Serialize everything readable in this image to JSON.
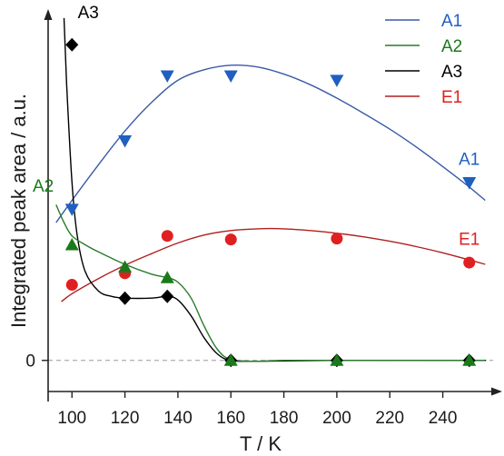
{
  "chart_data": {
    "type": "scatter",
    "xlabel": "T / K",
    "ylabel": "Integrated peak area / a.u.",
    "xlim": [
      91,
      259
    ],
    "ylim": [
      -0.35,
      3.9
    ],
    "x_ticks": [
      100,
      120,
      140,
      160,
      180,
      200,
      220,
      240
    ],
    "y_ticks": [
      {
        "value": 0,
        "label": "0"
      }
    ],
    "zero_line": "dashed",
    "grid": false,
    "legend": {
      "position": "top-right"
    },
    "series": [
      {
        "name": "A1",
        "color": "#1f5fc0",
        "line_color": "#3a5aa8",
        "marker": "triangle-down",
        "x": [
          100,
          120,
          136,
          160,
          200,
          250
        ],
        "y": [
          1.7,
          2.47,
          3.2,
          3.2,
          3.15,
          2.0
        ],
        "fit_x": [
          94,
          100,
          110,
          120,
          130,
          140,
          150,
          160,
          170,
          180,
          190,
          200,
          210,
          220,
          230,
          240,
          250,
          256
        ],
        "fit_y": [
          1.55,
          1.8,
          2.2,
          2.58,
          2.9,
          3.15,
          3.27,
          3.32,
          3.3,
          3.22,
          3.1,
          2.95,
          2.78,
          2.6,
          2.4,
          2.18,
          1.95,
          1.8
        ]
      },
      {
        "name": "A2",
        "color": "#1a7a1a",
        "line_color": "#2a7a2a",
        "marker": "triangle-up",
        "x": [
          100,
          120,
          136,
          160,
          200,
          250
        ],
        "y": [
          1.3,
          1.05,
          0.93,
          0.0,
          0.0,
          0.0
        ],
        "fit_x": [
          94,
          97,
          100,
          105,
          110,
          120,
          130,
          136,
          140,
          145,
          150,
          155,
          160,
          170,
          180,
          200,
          220,
          250,
          256
        ],
        "fit_y": [
          1.75,
          1.55,
          1.4,
          1.3,
          1.22,
          1.08,
          0.97,
          0.93,
          0.88,
          0.7,
          0.38,
          0.12,
          0.01,
          -0.01,
          0.0,
          0.0,
          0.0,
          0.0,
          0.0
        ]
      },
      {
        "name": "A3",
        "color": "#000000",
        "line_color": "#000000",
        "marker": "diamond",
        "x": [
          100,
          120,
          136,
          160,
          200,
          250
        ],
        "y": [
          3.55,
          0.7,
          0.72,
          0.0,
          0.0,
          0.0
        ],
        "fit_x": [
          97,
          98,
          100,
          102,
          105,
          110,
          115,
          120,
          130,
          136,
          140,
          145,
          150,
          155,
          160,
          170,
          200,
          250,
          256
        ],
        "fit_y": [
          3.85,
          3.1,
          2.0,
          1.4,
          1.0,
          0.78,
          0.72,
          0.7,
          0.7,
          0.72,
          0.68,
          0.5,
          0.25,
          0.07,
          0.0,
          -0.01,
          0.0,
          0.0,
          0.0
        ]
      },
      {
        "name": "E1",
        "color": "#e02020",
        "line_color": "#b02020",
        "marker": "circle",
        "x": [
          100,
          120,
          136,
          160,
          200,
          250
        ],
        "y": [
          0.85,
          0.98,
          1.4,
          1.36,
          1.37,
          1.1
        ],
        "fit_x": [
          96,
          100,
          110,
          120,
          130,
          140,
          150,
          160,
          170,
          180,
          190,
          200,
          210,
          220,
          230,
          240,
          250,
          256
        ],
        "fit_y": [
          0.66,
          0.75,
          0.92,
          1.07,
          1.2,
          1.32,
          1.41,
          1.46,
          1.48,
          1.48,
          1.46,
          1.43,
          1.39,
          1.34,
          1.28,
          1.21,
          1.13,
          1.08
        ]
      }
    ],
    "annotations": [
      {
        "text": "A3",
        "series": "A3",
        "x": 100,
        "y": 3.85
      },
      {
        "text": "A2",
        "series": "A2",
        "x": 96,
        "y": 1.9
      },
      {
        "text": "A1",
        "series": "A1",
        "x": 250,
        "y": 2.2
      },
      {
        "text": "E1",
        "series": "E1",
        "x": 250,
        "y": 1.3
      }
    ]
  }
}
